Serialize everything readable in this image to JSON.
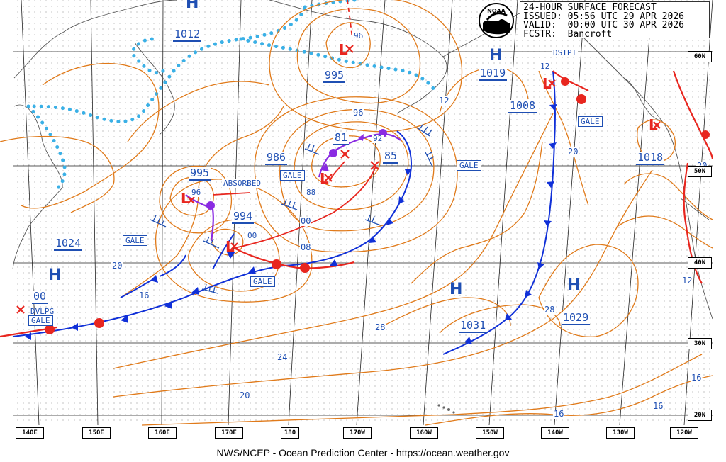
{
  "header": {
    "line1": "24-HOUR SURFACE FORECAST",
    "line2": "ISSUED: 05:56 UTC 29 APR 2026",
    "line3": "VALID:  00:00 UTC 30 APR 2026",
    "line4": "FCSTR:  Bancroft"
  },
  "logo_label": "NOAA",
  "footer": "NWS/NCEP - Ocean Prediction Center - https://ocean.weather.gov",
  "longitude_labels": [
    "140E",
    "150E",
    "160E",
    "170E",
    "180",
    "170W",
    "160W",
    "150W",
    "140W",
    "130W",
    "120W"
  ],
  "latitude_labels": [
    "60N",
    "50N",
    "40N",
    "30N",
    "20N"
  ],
  "highs": [
    {
      "symbol": "H",
      "pressure": "1012"
    },
    {
      "symbol": "H",
      "pressure": "1019"
    },
    {
      "symbol": "H",
      "pressure": "1024"
    },
    {
      "symbol": "H",
      "pressure": "1031"
    },
    {
      "symbol": "H",
      "pressure": "1029"
    },
    {
      "symbol": "H",
      "pressure": ""
    }
  ],
  "lows": [
    {
      "pressure": "995",
      "note": "96"
    },
    {
      "pressure": "986",
      "note": "81"
    },
    {
      "pressure": "85",
      "note": "92"
    },
    {
      "pressure": "995",
      "note": "96"
    },
    {
      "pressure": "994",
      "note": "00"
    },
    {
      "pressure": "1008",
      "note": "12"
    },
    {
      "pressure": "1018",
      "note": ""
    },
    {
      "pressure": "00",
      "note": ""
    }
  ],
  "gale_labels": [
    "GALE",
    "GALE",
    "GALE",
    "GALE",
    "GALE",
    "GALE"
  ],
  "text_notes": {
    "absorbed": "ABSORBED",
    "dsipt": "DSIPT",
    "dvlpg": "DVLPG"
  },
  "isobar_labels": [
    "12",
    "96",
    "88",
    "00",
    "08",
    "20",
    "16",
    "28",
    "24",
    "20",
    "16",
    "28",
    "20",
    "16",
    "12",
    "20",
    "16"
  ],
  "colors": {
    "isobar": "#e07a1a",
    "front_blue": "#1030d8",
    "front_red": "#e8261f",
    "occluded": "#8a2be2",
    "ice_edge": "#3ab0e6",
    "coast": "#555555",
    "text_blue": "#1f4fb3"
  }
}
